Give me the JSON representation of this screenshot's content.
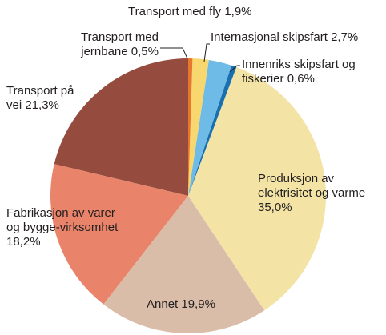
{
  "chart_data": {
    "type": "pie",
    "categories": [
      "Transport med jernbane",
      "Transport med fly",
      "Internasjonal skipsfart",
      "Innenriks skipsfart og fiskerier",
      "Produksjon av elektrisitet og varme",
      "Annet",
      "Fabrikasjon av varer og bygge-virksomhet",
      "Transport på vei"
    ],
    "values": [
      0.5,
      1.9,
      2.7,
      0.6,
      35.0,
      19.9,
      18.2,
      21.3
    ],
    "value_labels": [
      "0,5%",
      "1,9%",
      "2,7%",
      "0,6%",
      "35,0%",
      "19,9%",
      "18,2%",
      "21,3%"
    ],
    "colors": [
      "#e8772e",
      "#f8d86e",
      "#6ebbe8",
      "#1a6fb0",
      "#f3e4a6",
      "#d9bda9",
      "#e9846a",
      "#954b3d"
    ]
  }
}
